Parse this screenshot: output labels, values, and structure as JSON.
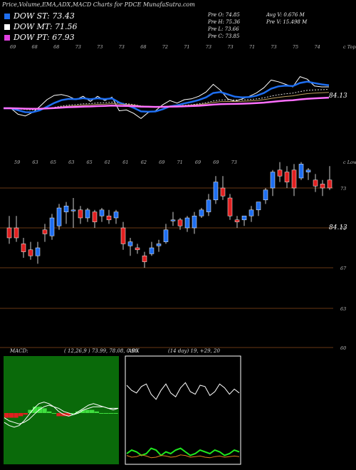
{
  "title": "Price,Volume,EMA,ADX,MACD Charts for PDCE MunafaSutra.com",
  "legend": [
    {
      "label": "DOW ST: 73.43",
      "color": "#1e6ef0"
    },
    {
      "label": "DOW MT: 71.56",
      "color": "#ffffff"
    },
    {
      "label": "DOW PT: 67.93",
      "color": "#e040e0"
    }
  ],
  "stats_left": [
    "Pre   O: 74.85",
    "Pre   H: 75.36",
    "Pre   L: 73.66",
    "Pre   C: 73.85"
  ],
  "stats_right": [
    "Avg V: 0.676  M",
    "Pre   V: 15.498  M"
  ],
  "top_tick_labels": [
    "69",
    "68",
    "68",
    "73",
    "73",
    "73",
    "68",
    "72",
    "71",
    "73",
    "73",
    "71",
    "73",
    "75",
    "74"
  ],
  "top_right_label": "c Topa",
  "ema_value_label": "84.13",
  "mid_tick_labels": [
    "59",
    "63",
    "65",
    "63",
    "65",
    "61",
    "61",
    "62",
    "69",
    "71",
    "69",
    "69",
    "73"
  ],
  "mid_right_label": "c Lowns",
  "price_axis": [
    "73",
    "71",
    "67",
    "63",
    "60"
  ],
  "price_value_label": "84.13",
  "macd_label": "MACD:",
  "macd_params": "( 12,26,9 ) 73.99, 78.08, 0.96",
  "adx_label": "ADX",
  "adx_params": "(14  day) 19, +29, 20",
  "colors": {
    "up": "#1e6ef0",
    "down": "#e02020",
    "green_bg": "#0a6a0a",
    "grid": "#8a4a1a"
  },
  "chart_data": [
    {
      "type": "candlestick",
      "title": "Price,Volume,EMA,ADX,MACD Charts for PDCE MunafaSutra.com",
      "y_axis_ticks": [
        73,
        71,
        67,
        63,
        60
      ],
      "candles": [
        {
          "o": 71.0,
          "h": 71.6,
          "l": 70.2,
          "c": 70.5
        },
        {
          "o": 71.0,
          "h": 71.6,
          "l": 70.3,
          "c": 70.5
        },
        {
          "o": 70.2,
          "h": 70.5,
          "l": 69.5,
          "c": 69.8
        },
        {
          "o": 69.9,
          "h": 70.3,
          "l": 69.4,
          "c": 69.6
        },
        {
          "o": 69.6,
          "h": 70.3,
          "l": 69.2,
          "c": 70.0
        },
        {
          "o": 70.9,
          "h": 71.2,
          "l": 70.3,
          "c": 70.7
        },
        {
          "o": 70.6,
          "h": 71.7,
          "l": 70.4,
          "c": 71.5
        },
        {
          "o": 71.1,
          "h": 72.2,
          "l": 70.9,
          "c": 72.0
        },
        {
          "o": 71.8,
          "h": 72.3,
          "l": 71.2,
          "c": 72.1
        },
        {
          "o": 71.9,
          "h": 72.5,
          "l": 71.0,
          "c": 71.9
        },
        {
          "o": 71.9,
          "h": 72.1,
          "l": 71.2,
          "c": 71.5
        },
        {
          "o": 71.5,
          "h": 72.0,
          "l": 71.3,
          "c": 71.9
        },
        {
          "o": 71.8,
          "h": 71.9,
          "l": 71.0,
          "c": 71.3
        },
        {
          "o": 71.6,
          "h": 72.0,
          "l": 71.3,
          "c": 71.9
        },
        {
          "o": 71.6,
          "h": 71.9,
          "l": 71.2,
          "c": 71.4
        },
        {
          "o": 71.5,
          "h": 71.9,
          "l": 71.2,
          "c": 71.8
        },
        {
          "o": 71.0,
          "h": 71.3,
          "l": 69.9,
          "c": 70.2
        },
        {
          "o": 70.1,
          "h": 70.5,
          "l": 69.6,
          "c": 70.3
        },
        {
          "o": 70.0,
          "h": 70.2,
          "l": 69.7,
          "c": 69.9
        },
        {
          "o": 69.6,
          "h": 69.8,
          "l": 69.0,
          "c": 69.3
        },
        {
          "o": 69.7,
          "h": 70.3,
          "l": 69.6,
          "c": 70.0
        },
        {
          "o": 70.1,
          "h": 70.4,
          "l": 69.8,
          "c": 70.2
        },
        {
          "o": 70.3,
          "h": 71.2,
          "l": 70.2,
          "c": 70.9
        },
        {
          "o": 71.4,
          "h": 71.8,
          "l": 71.1,
          "c": 71.4
        },
        {
          "o": 71.4,
          "h": 71.5,
          "l": 70.9,
          "c": 71.1
        },
        {
          "o": 71.0,
          "h": 71.6,
          "l": 70.8,
          "c": 71.5
        },
        {
          "o": 71.0,
          "h": 71.8,
          "l": 70.7,
          "c": 71.6
        },
        {
          "o": 71.6,
          "h": 72.0,
          "l": 71.5,
          "c": 71.9
        },
        {
          "o": 71.8,
          "h": 72.7,
          "l": 71.6,
          "c": 72.4
        },
        {
          "o": 72.4,
          "h": 73.6,
          "l": 72.2,
          "c": 73.3
        },
        {
          "o": 73.0,
          "h": 73.6,
          "l": 72.4,
          "c": 72.6
        },
        {
          "o": 72.5,
          "h": 72.7,
          "l": 71.4,
          "c": 71.6
        },
        {
          "o": 71.4,
          "h": 71.6,
          "l": 71.0,
          "c": 71.3
        },
        {
          "o": 71.4,
          "h": 71.6,
          "l": 71.1,
          "c": 71.6
        },
        {
          "o": 71.6,
          "h": 72.1,
          "l": 71.3,
          "c": 71.9
        },
        {
          "o": 71.9,
          "h": 72.3,
          "l": 71.6,
          "c": 72.3
        },
        {
          "o": 72.4,
          "h": 73.0,
          "l": 72.2,
          "c": 72.9
        },
        {
          "o": 73.0,
          "h": 73.9,
          "l": 72.6,
          "c": 73.8
        },
        {
          "o": 73.9,
          "h": 74.3,
          "l": 73.3,
          "c": 73.6
        },
        {
          "o": 73.8,
          "h": 74.1,
          "l": 73.0,
          "c": 73.3
        },
        {
          "o": 73.9,
          "h": 74.2,
          "l": 72.6,
          "c": 73.0
        },
        {
          "o": 73.5,
          "h": 74.3,
          "l": 73.4,
          "c": 74.2
        },
        {
          "o": 73.8,
          "h": 74.0,
          "l": 73.4,
          "c": 73.9
        },
        {
          "o": 73.4,
          "h": 73.7,
          "l": 72.8,
          "c": 73.1
        },
        {
          "o": 73.2,
          "h": 73.4,
          "l": 72.6,
          "c": 73.0
        },
        {
          "o": 73.4,
          "h": 74.1,
          "l": 72.9,
          "c": 73.0
        }
      ]
    },
    {
      "type": "line",
      "title": "MACD",
      "series": [
        {
          "values": [
            -0.6,
            -0.8,
            -0.9,
            -0.8,
            -0.5,
            -0.1,
            0.3,
            0.6,
            0.7,
            0.6,
            0.4,
            0.1,
            -0.1,
            -0.2,
            -0.1,
            0.1,
            0.3,
            0.5,
            0.6,
            0.5,
            0.4,
            0.3,
            0.2,
            0.3
          ]
        },
        {
          "values": [
            -0.3,
            -0.5,
            -0.6,
            -0.7,
            -0.6,
            -0.4,
            -0.1,
            0.2,
            0.4,
            0.5,
            0.4,
            0.3,
            0.1,
            0.0,
            -0.1,
            0.0,
            0.2,
            0.3,
            0.4,
            0.4,
            0.4,
            0.3,
            0.3,
            0.3
          ]
        }
      ],
      "histogram": [
        -0.3,
        -0.3,
        -0.3,
        -0.2,
        -0.1,
        0.2,
        0.4,
        0.4,
        0.3,
        0.1,
        0.0,
        -0.2,
        -0.2,
        -0.2,
        0.0,
        0.1,
        0.2,
        0.2,
        0.2,
        0.1,
        0.0,
        0.0,
        0.0,
        0.0
      ]
    },
    {
      "type": "line",
      "title": "ADX",
      "series": [
        {
          "values": [
            35,
            31,
            29,
            34,
            36,
            28,
            24,
            31,
            36,
            29,
            26,
            33,
            37,
            30,
            28,
            35,
            34,
            27,
            30,
            36,
            33,
            28,
            32,
            29
          ]
        },
        {
          "values": [
            20,
            22,
            21,
            19,
            20,
            23,
            22,
            19,
            21,
            20,
            22,
            23,
            21,
            19,
            20,
            22,
            21,
            20,
            22,
            21,
            19,
            20,
            22,
            21
          ]
        },
        {
          "values": [
            8,
            5,
            6,
            9,
            7,
            4,
            5,
            8,
            7,
            5,
            6,
            9,
            8,
            5,
            6,
            7,
            5,
            4,
            6,
            7,
            5,
            6,
            7,
            6
          ]
        }
      ]
    }
  ]
}
